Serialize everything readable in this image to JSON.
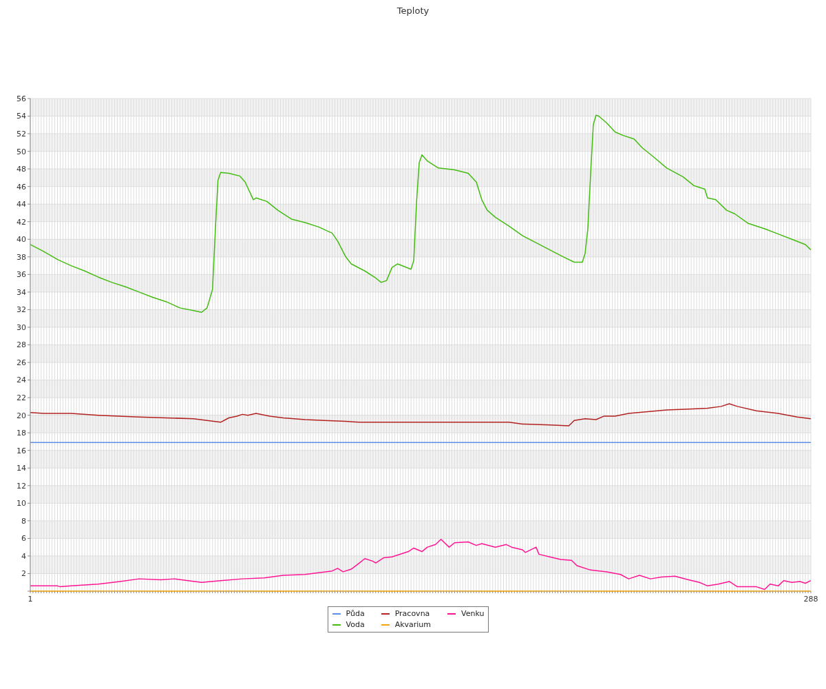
{
  "chart_data": {
    "type": "line",
    "title": "Teploty",
    "xlim": [
      1,
      288
    ],
    "xticks": [
      1,
      {
        "value": 2,
        "label": null
      },
      {
        "value": 3,
        "label": null
      },
      {
        "value": 4,
        "label": null
      },
      {
        "value": 5,
        "label": null
      },
      {
        "value": 6,
        "label": null
      },
      {
        "value": 7,
        "label": null
      },
      {
        "value": 8,
        "label": null
      },
      {
        "value": 9,
        "label": null
      },
      {
        "value": 10,
        "label": null
      },
      {
        "value": 11,
        "label": null
      },
      {
        "value": 12,
        "label": null
      },
      {
        "value": 13,
        "label": null
      },
      {
        "value": 14,
        "label": null
      },
      {
        "value": 15,
        "label": null
      },
      {
        "value": 16,
        "label": null
      },
      {
        "value": 17,
        "label": null
      },
      {
        "value": 18,
        "label": null
      },
      {
        "value": 19,
        "label": null
      },
      {
        "value": 20,
        "label": null
      },
      {
        "value": 21,
        "label": null
      },
      {
        "value": 22,
        "label": null
      },
      {
        "value": 23,
        "label": null
      },
      {
        "value": 24,
        "label": null
      },
      {
        "value": 25,
        "label": null
      },
      {
        "value": 26,
        "label": null
      },
      {
        "value": 27,
        "label": null
      },
      {
        "value": 28,
        "label": null
      },
      {
        "value": 29,
        "label": null
      },
      {
        "value": 30,
        "label": null
      },
      {
        "value": 31,
        "label": null
      },
      {
        "value": 32,
        "label": null
      },
      {
        "value": 33,
        "label": null
      },
      {
        "value": 34,
        "label": null
      },
      {
        "value": 35,
        "label": null
      },
      {
        "value": 36,
        "label": null
      },
      {
        "value": 37,
        "label": null
      },
      {
        "value": 38,
        "label": null
      },
      {
        "value": 39,
        "label": null
      },
      {
        "value": 40,
        "label": null
      },
      {
        "value": 41,
        "label": null
      },
      {
        "value": 42,
        "label": null
      },
      {
        "value": 43,
        "label": null
      },
      {
        "value": 44,
        "label": null
      },
      {
        "value": 45,
        "label": null
      },
      {
        "value": 46,
        "label": null
      },
      {
        "value": 47,
        "label": null
      },
      {
        "value": 48,
        "label": null
      },
      {
        "value": 49,
        "label": null
      },
      {
        "value": 50,
        "label": null
      },
      {
        "value": 51,
        "label": null
      },
      {
        "value": 52,
        "label": null
      },
      {
        "value": 53,
        "label": null
      },
      {
        "value": 54,
        "label": null
      },
      {
        "value": 55,
        "label": null
      },
      {
        "value": 56,
        "label": null
      },
      {
        "value": 57,
        "label": null
      },
      {
        "value": 58,
        "label": null
      },
      {
        "value": 59,
        "label": null
      },
      {
        "value": 60,
        "label": null
      },
      {
        "value": 61,
        "label": null
      },
      {
        "value": 62,
        "label": null
      },
      {
        "value": 63,
        "label": null
      },
      {
        "value": 64,
        "label": null
      },
      {
        "value": 65,
        "label": null
      },
      {
        "value": 66,
        "label": null
      },
      {
        "value": 67,
        "label": null
      },
      {
        "value": 68,
        "label": null
      },
      {
        "value": 69,
        "label": null
      },
      {
        "value": 70,
        "label": null
      },
      {
        "value": 71,
        "label": null
      },
      {
        "value": 72,
        "label": null
      },
      {
        "value": 73,
        "label": null
      },
      {
        "value": 74,
        "label": null
      },
      {
        "value": 75,
        "label": null
      },
      {
        "value": 76,
        "label": null
      },
      {
        "value": 77,
        "label": null
      },
      {
        "value": 78,
        "label": null
      },
      {
        "value": 79,
        "label": null
      },
      {
        "value": 80,
        "label": null
      },
      {
        "value": 81,
        "label": null
      },
      {
        "value": 82,
        "label": null
      },
      {
        "value": 83,
        "label": null
      },
      {
        "value": 84,
        "label": null
      },
      {
        "value": 85,
        "label": null
      },
      {
        "value": 86,
        "label": null
      },
      {
        "value": 87,
        "label": null
      },
      {
        "value": 88,
        "label": null
      },
      {
        "value": 89,
        "label": null
      },
      {
        "value": 90,
        "label": null
      },
      {
        "value": 91,
        "label": null
      },
      {
        "value": 92,
        "label": null
      },
      {
        "value": 93,
        "label": null
      },
      {
        "value": 94,
        "label": null
      },
      {
        "value": 95,
        "label": null
      },
      {
        "value": 96,
        "label": null
      },
      {
        "value": 97,
        "label": null
      },
      {
        "value": 98,
        "label": null
      },
      {
        "value": 99,
        "label": null
      },
      {
        "value": 100,
        "label": null
      },
      {
        "value": 101,
        "label": null
      },
      {
        "value": 102,
        "label": null
      },
      {
        "value": 103,
        "label": null
      },
      {
        "value": 104,
        "label": null
      },
      {
        "value": 105,
        "label": null
      },
      {
        "value": 106,
        "label": null
      },
      {
        "value": 107,
        "label": null
      },
      {
        "value": 108,
        "label": null
      },
      {
        "value": 109,
        "label": null
      },
      {
        "value": 110,
        "label": null
      },
      {
        "value": 111,
        "label": null
      },
      {
        "value": 112,
        "label": null
      },
      {
        "value": 113,
        "label": null
      },
      {
        "value": 114,
        "label": null
      },
      {
        "value": 115,
        "label": null
      },
      {
        "value": 116,
        "label": null
      },
      {
        "value": 117,
        "label": null
      },
      {
        "value": 118,
        "label": null
      },
      {
        "value": 119,
        "label": null
      },
      {
        "value": 120,
        "label": null
      },
      {
        "value": 121,
        "label": null
      },
      {
        "value": 122,
        "label": null
      },
      {
        "value": 123,
        "label": null
      },
      {
        "value": 124,
        "label": null
      },
      {
        "value": 125,
        "label": null
      },
      {
        "value": 126,
        "label": null
      },
      {
        "value": 127,
        "label": null
      },
      {
        "value": 128,
        "label": null
      },
      {
        "value": 129,
        "label": null
      },
      {
        "value": 130,
        "label": null
      },
      {
        "value": 131,
        "label": null
      },
      {
        "value": 132,
        "label": null
      },
      {
        "value": 133,
        "label": null
      },
      {
        "value": 134,
        "label": null
      },
      {
        "value": 135,
        "label": null
      },
      {
        "value": 136,
        "label": null
      },
      {
        "value": 137,
        "label": null
      },
      {
        "value": 138,
        "label": null
      },
      {
        "value": 139,
        "label": null
      },
      {
        "value": 140,
        "label": null
      },
      {
        "value": 141,
        "label": null
      },
      {
        "value": 142,
        "label": null
      },
      {
        "value": 143,
        "label": null
      },
      {
        "value": 144,
        "label": null
      },
      {
        "value": 145,
        "label": null
      },
      {
        "value": 146,
        "label": null
      },
      {
        "value": 147,
        "label": null
      },
      {
        "value": 148,
        "label": null
      },
      {
        "value": 149,
        "label": null
      },
      {
        "value": 150,
        "label": null
      },
      {
        "value": 151,
        "label": null
      },
      {
        "value": 152,
        "label": null
      },
      {
        "value": 153,
        "label": null
      },
      {
        "value": 154,
        "label": null
      },
      {
        "value": 155,
        "label": null
      },
      {
        "value": 156,
        "label": null
      },
      {
        "value": 157,
        "label": null
      },
      {
        "value": 158,
        "label": null
      },
      {
        "value": 159,
        "label": null
      },
      {
        "value": 160,
        "label": null
      },
      {
        "value": 161,
        "label": null
      },
      {
        "value": 162,
        "label": null
      },
      {
        "value": 163,
        "label": null
      },
      {
        "value": 164,
        "label": null
      },
      {
        "value": 165,
        "label": null
      },
      {
        "value": 166,
        "label": null
      },
      {
        "value": 167,
        "label": null
      },
      {
        "value": 168,
        "label": null
      },
      {
        "value": 169,
        "label": null
      },
      {
        "value": 170,
        "label": null
      },
      {
        "value": 171,
        "label": null
      },
      {
        "value": 172,
        "label": null
      },
      {
        "value": 173,
        "label": null
      },
      {
        "value": 174,
        "label": null
      },
      {
        "value": 175,
        "label": null
      },
      {
        "value": 176,
        "label": null
      },
      {
        "value": 177,
        "label": null
      },
      {
        "value": 178,
        "label": null
      },
      {
        "value": 179,
        "label": null
      },
      {
        "value": 180,
        "label": null
      },
      {
        "value": 181,
        "label": null
      },
      {
        "value": 182,
        "label": null
      },
      {
        "value": 183,
        "label": null
      },
      {
        "value": 184,
        "label": null
      },
      {
        "value": 185,
        "label": null
      },
      {
        "value": 186,
        "label": null
      },
      {
        "value": 187,
        "label": null
      },
      {
        "value": 188,
        "label": null
      },
      {
        "value": 189,
        "label": null
      },
      {
        "value": 190,
        "label": null
      },
      {
        "value": 191,
        "label": null
      },
      {
        "value": 192,
        "label": null
      },
      {
        "value": 193,
        "label": null
      },
      {
        "value": 194,
        "label": null
      },
      {
        "value": 195,
        "label": null
      },
      {
        "value": 196,
        "label": null
      },
      {
        "value": 197,
        "label": null
      },
      {
        "value": 198,
        "label": null
      },
      {
        "value": 199,
        "label": null
      },
      {
        "value": 200,
        "label": null
      },
      {
        "value": 201,
        "label": null
      },
      {
        "value": 202,
        "label": null
      },
      {
        "value": 203,
        "label": null
      },
      {
        "value": 204,
        "label": null
      },
      {
        "value": 205,
        "label": null
      },
      {
        "value": 206,
        "label": null
      },
      {
        "value": 207,
        "label": null
      },
      {
        "value": 208,
        "label": null
      },
      {
        "value": 209,
        "label": null
      },
      {
        "value": 210,
        "label": null
      },
      {
        "value": 211,
        "label": null
      },
      {
        "value": 212,
        "label": null
      },
      {
        "value": 213,
        "label": null
      },
      {
        "value": 214,
        "label": null
      },
      {
        "value": 215,
        "label": null
      },
      {
        "value": 216,
        "label": null
      },
      {
        "value": 217,
        "label": null
      },
      {
        "value": 218,
        "label": null
      },
      {
        "value": 219,
        "label": null
      },
      {
        "value": 220,
        "label": null
      },
      {
        "value": 221,
        "label": null
      },
      {
        "value": 222,
        "label": null
      },
      {
        "value": 223,
        "label": null
      },
      {
        "value": 224,
        "label": null
      },
      {
        "value": 225,
        "label": null
      },
      {
        "value": 226,
        "label": null
      },
      {
        "value": 227,
        "label": null
      },
      {
        "value": 228,
        "label": null
      },
      {
        "value": 229,
        "label": null
      },
      {
        "value": 230,
        "label": null
      },
      {
        "value": 231,
        "label": null
      },
      {
        "value": 232,
        "label": null
      },
      {
        "value": 233,
        "label": null
      },
      {
        "value": 234,
        "label": null
      },
      {
        "value": 235,
        "label": null
      },
      {
        "value": 236,
        "label": null
      },
      {
        "value": 237,
        "label": null
      },
      {
        "value": 238,
        "label": null
      },
      {
        "value": 239,
        "label": null
      },
      {
        "value": 240,
        "label": null
      },
      {
        "value": 241,
        "label": null
      },
      {
        "value": 242,
        "label": null
      },
      {
        "value": 243,
        "label": null
      },
      {
        "value": 244,
        "label": null
      },
      {
        "value": 245,
        "label": null
      },
      {
        "value": 246,
        "label": null
      },
      {
        "value": 247,
        "label": null
      },
      {
        "value": 248,
        "label": null
      },
      {
        "value": 249,
        "label": null
      },
      {
        "value": 250,
        "label": null
      },
      {
        "value": 251,
        "label": null
      },
      {
        "value": 252,
        "label": null
      },
      {
        "value": 253,
        "label": null
      },
      {
        "value": 254,
        "label": null
      },
      {
        "value": 255,
        "label": null
      },
      {
        "value": 256,
        "label": null
      },
      {
        "value": 257,
        "label": null
      },
      {
        "value": 258,
        "label": null
      },
      {
        "value": 259,
        "label": null
      },
      {
        "value": 260,
        "label": null
      },
      {
        "value": 261,
        "label": null
      },
      {
        "value": 262,
        "label": null
      },
      {
        "value": 263,
        "label": null
      },
      {
        "value": 264,
        "label": null
      },
      {
        "value": 265,
        "label": null
      },
      {
        "value": 266,
        "label": null
      },
      {
        "value": 267,
        "label": null
      },
      {
        "value": 268,
        "label": null
      },
      {
        "value": 269,
        "label": null
      },
      {
        "value": 270,
        "label": null
      },
      {
        "value": 271,
        "label": null
      },
      {
        "value": 272,
        "label": null
      },
      {
        "value": 273,
        "label": null
      },
      {
        "value": 274,
        "label": null
      },
      {
        "value": 275,
        "label": null
      },
      {
        "value": 276,
        "label": null
      },
      {
        "value": 277,
        "label": null
      },
      {
        "value": 278,
        "label": null
      },
      {
        "value": 279,
        "label": null
      },
      {
        "value": 280,
        "label": null
      },
      {
        "value": 281,
        "label": null
      },
      {
        "value": 282,
        "label": null
      },
      {
        "value": 283,
        "label": null
      },
      {
        "value": 284,
        "label": null
      },
      {
        "value": 285,
        "label": null
      },
      {
        "value": 286,
        "label": null
      },
      {
        "value": 287,
        "label": null
      },
      288
    ],
    "ylim": [
      0,
      56
    ],
    "yticks": [
      {
        "value": 0,
        "label": null
      },
      2,
      4,
      6,
      8,
      10,
      12,
      14,
      16,
      18,
      20,
      22,
      24,
      26,
      28,
      30,
      32,
      34,
      36,
      38,
      40,
      42,
      44,
      46,
      48,
      50,
      52,
      54,
      56
    ],
    "grid": true,
    "legend": "bottom",
    "series": [
      {
        "name": "Půda",
        "color": "#5b8fe6",
        "x": [
          1,
          288
        ],
        "values": [
          16.9,
          16.9
        ]
      },
      {
        "name": "Voda",
        "color": "#44bb11",
        "x": [
          1,
          6,
          11,
          16,
          21,
          26,
          31,
          36,
          41,
          46,
          51,
          56,
          61,
          64,
          66,
          68,
          69,
          70,
          71,
          74,
          78,
          80,
          83,
          84,
          88,
          92,
          97,
          102,
          107,
          112,
          114,
          117,
          119,
          124,
          128,
          130,
          132,
          134,
          136,
          141,
          142,
          143,
          144,
          145,
          147,
          151,
          157,
          162,
          165,
          167,
          169,
          172,
          177,
          182,
          187,
          192,
          197,
          201,
          204,
          205,
          206,
          207,
          208,
          209,
          210,
          213,
          216,
          219,
          223,
          226,
          230,
          235,
          241,
          245,
          249,
          250,
          253,
          257,
          260,
          265,
          271,
          276,
          281,
          286,
          288
        ],
        "values": [
          39.4,
          38.6,
          37.7,
          37.0,
          36.4,
          35.7,
          35.1,
          34.6,
          34.0,
          33.4,
          32.9,
          32.2,
          31.9,
          31.7,
          32.2,
          34.3,
          40.8,
          46.7,
          47.6,
          47.5,
          47.2,
          46.5,
          44.5,
          44.7,
          44.3,
          43.3,
          42.3,
          41.9,
          41.4,
          40.7,
          39.8,
          38.0,
          37.2,
          36.4,
          35.6,
          35.1,
          35.3,
          36.8,
          37.2,
          36.6,
          37.6,
          44.1,
          48.7,
          49.6,
          48.9,
          48.1,
          47.9,
          47.5,
          46.5,
          44.5,
          43.3,
          42.5,
          41.5,
          40.4,
          39.6,
          38.8,
          38.0,
          37.4,
          37.4,
          38.4,
          41.2,
          47.3,
          53.0,
          54.1,
          54.0,
          53.2,
          52.2,
          51.8,
          51.4,
          50.4,
          49.4,
          48.1,
          47.1,
          46.1,
          45.7,
          44.7,
          44.5,
          43.3,
          42.9,
          41.8,
          41.2,
          40.6,
          40.0,
          39.4,
          38.8
        ]
      },
      {
        "name": "Pracovna",
        "color": "#b22222",
        "x": [
          1,
          6,
          16,
          26,
          41,
          61,
          71,
          74,
          77,
          79,
          81,
          84,
          89,
          94,
          102,
          109,
          117,
          122,
          142,
          167,
          177,
          182,
          192,
          199,
          201,
          205,
          209,
          212,
          216,
          221,
          228,
          235,
          243,
          250,
          255,
          258,
          261,
          268,
          276,
          283,
          288
        ],
        "values": [
          20.3,
          20.2,
          20.2,
          20.0,
          19.8,
          19.6,
          19.2,
          19.7,
          19.9,
          20.1,
          20.0,
          20.2,
          19.9,
          19.7,
          19.5,
          19.4,
          19.3,
          19.2,
          19.2,
          19.2,
          19.2,
          19.0,
          18.9,
          18.8,
          19.4,
          19.6,
          19.5,
          19.9,
          19.9,
          20.2,
          20.4,
          20.6,
          20.7,
          20.8,
          21.0,
          21.3,
          21.0,
          20.5,
          20.2,
          19.8,
          19.6
        ]
      },
      {
        "name": "Akvarium",
        "color": "#f5a300",
        "x": [
          1,
          288
        ],
        "values": [
          0,
          0
        ]
      },
      {
        "name": "Venku",
        "color": "#ff1493",
        "x": [
          1,
          11,
          12,
          16,
          26,
          34,
          41,
          49,
          54,
          59,
          64,
          71,
          79,
          87,
          94,
          102,
          107,
          112,
          114,
          116,
          119,
          122,
          124,
          127,
          128,
          131,
          134,
          140,
          142,
          145,
          147,
          150,
          152,
          155,
          157,
          162,
          165,
          167,
          172,
          176,
          178,
          182,
          183,
          187,
          188,
          192,
          196,
          200,
          202,
          207,
          213,
          218,
          221,
          225,
          229,
          233,
          238,
          243,
          247,
          250,
          254,
          258,
          261,
          264,
          268,
          271,
          273,
          276,
          278,
          281,
          284,
          286,
          288
        ],
        "values": [
          0.6,
          0.6,
          0.5,
          0.6,
          0.8,
          1.1,
          1.4,
          1.3,
          1.4,
          1.2,
          1.0,
          1.2,
          1.4,
          1.5,
          1.8,
          1.9,
          2.1,
          2.3,
          2.6,
          2.2,
          2.5,
          3.2,
          3.7,
          3.4,
          3.2,
          3.8,
          3.9,
          4.5,
          4.9,
          4.5,
          5.0,
          5.3,
          5.9,
          5.0,
          5.5,
          5.6,
          5.2,
          5.4,
          5.0,
          5.3,
          5.0,
          4.7,
          4.4,
          5.0,
          4.2,
          3.9,
          3.6,
          3.5,
          2.9,
          2.4,
          2.2,
          1.9,
          1.4,
          1.8,
          1.4,
          1.6,
          1.7,
          1.3,
          1.0,
          0.6,
          0.8,
          1.1,
          0.5,
          0.5,
          0.5,
          0.2,
          0.8,
          0.6,
          1.2,
          1.0,
          1.1,
          0.9,
          1.2
        ]
      }
    ]
  }
}
